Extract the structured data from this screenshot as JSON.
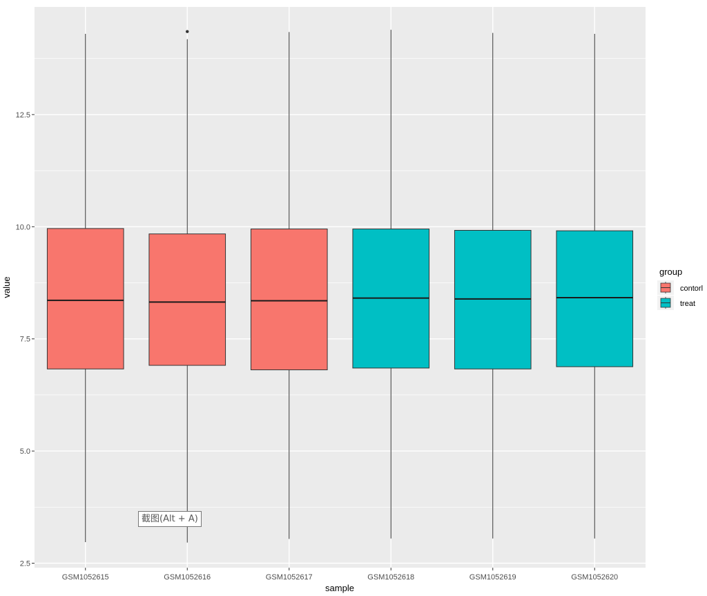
{
  "chart_data": {
    "type": "boxplot",
    "xlabel": "sample",
    "ylabel": "value",
    "ylim": [
      2.4,
      14.9
    ],
    "yticks": [
      2.5,
      5.0,
      7.5,
      10.0,
      12.5
    ],
    "ytick_labels": [
      "2.5",
      "5.0",
      "7.5",
      "10.0",
      "12.5"
    ],
    "grid": true,
    "legend": {
      "title": "group",
      "placement": "right",
      "entries": [
        {
          "label": "contorl",
          "color": "#F8766D"
        },
        {
          "label": "treat",
          "color": "#00BFC4"
        }
      ]
    },
    "categories": [
      "GSM1052615",
      "GSM1052616",
      "GSM1052617",
      "GSM1052618",
      "GSM1052619",
      "GSM1052620"
    ],
    "boxes": [
      {
        "sample": "GSM1052615",
        "group": "contorl",
        "min": 2.97,
        "q1": 6.83,
        "median": 8.36,
        "q3": 9.96,
        "max": 14.3,
        "outliers": []
      },
      {
        "sample": "GSM1052616",
        "group": "contorl",
        "min": 2.96,
        "q1": 6.91,
        "median": 8.32,
        "q3": 9.84,
        "max": 14.18,
        "outliers": [
          14.35
        ]
      },
      {
        "sample": "GSM1052617",
        "group": "contorl",
        "min": 3.04,
        "q1": 6.81,
        "median": 8.35,
        "q3": 9.95,
        "max": 14.34,
        "outliers": []
      },
      {
        "sample": "GSM1052618",
        "group": "treat",
        "min": 3.05,
        "q1": 6.85,
        "median": 8.41,
        "q3": 9.95,
        "max": 14.39,
        "outliers": []
      },
      {
        "sample": "GSM1052619",
        "group": "treat",
        "min": 3.05,
        "q1": 6.83,
        "median": 8.39,
        "q3": 9.92,
        "max": 14.32,
        "outliers": []
      },
      {
        "sample": "GSM1052620",
        "group": "treat",
        "min": 3.05,
        "q1": 6.88,
        "median": 8.42,
        "q3": 9.91,
        "max": 14.3,
        "outliers": []
      }
    ]
  },
  "overlay": {
    "tooltip_text": "截图(Alt + A)"
  }
}
